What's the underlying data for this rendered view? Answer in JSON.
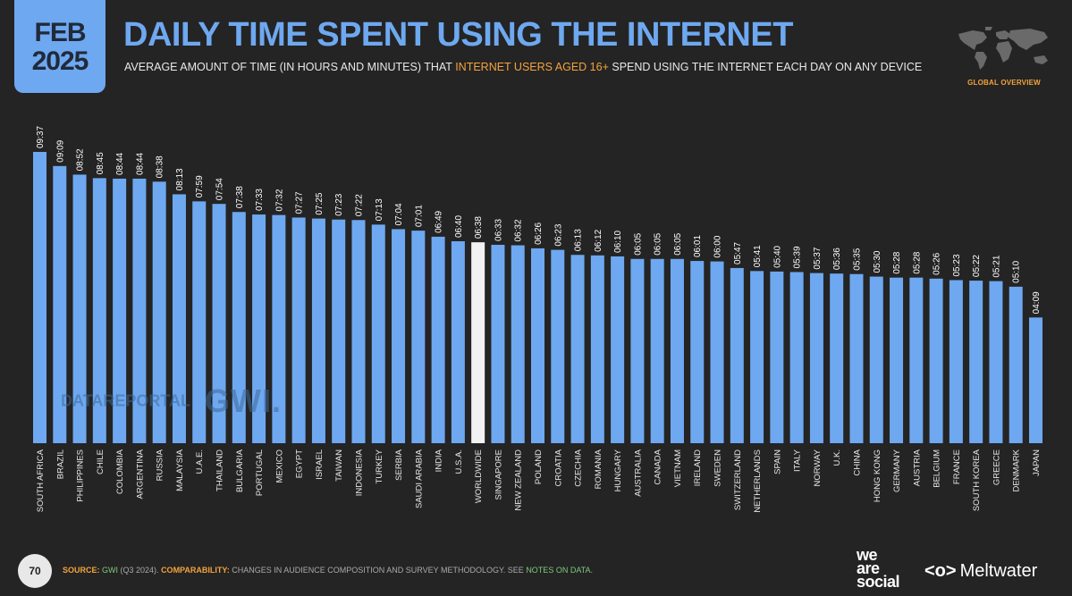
{
  "header": {
    "month": "FEB",
    "year": "2025",
    "title": "DAILY TIME SPENT USING THE INTERNET",
    "subtitle_pre": "AVERAGE AMOUNT OF TIME (IN HOURS AND MINUTES) THAT ",
    "subtitle_highlight": "INTERNET USERS AGED 16+",
    "subtitle_post": " SPEND USING THE INTERNET EACH DAY ON ANY DEVICE",
    "overview_label": "GLOBAL OVERVIEW"
  },
  "watermark": {
    "datareportal": "DATAREPORTAL",
    "gwi": "GWI."
  },
  "footer": {
    "page_number": "70",
    "source_label": "SOURCE:",
    "source_link": "GWI",
    "source_text": " (Q3 2024). ",
    "comparability_label": "COMPARABILITY:",
    "comparability_text": " CHANGES IN AUDIENCE COMPOSITION AND SURVEY METHODOLOGY. SEE ",
    "notes_link": "NOTES ON DATA",
    "notes_end": "."
  },
  "brand": {
    "we_are_social": [
      "we",
      "are",
      "social"
    ],
    "meltwater": "Meltwater"
  },
  "colors": {
    "bar": "#6ea8f0",
    "highlight_bar": "#f2f2f2",
    "accent": "#f3a33c",
    "background": "#242424"
  },
  "chart_data": {
    "type": "bar",
    "title": "DAILY TIME SPENT USING THE INTERNET",
    "highlight": "WORLDWIDE",
    "categories": [
      "SOUTH AFRICA",
      "BRAZIL",
      "PHILIPPINES",
      "CHILE",
      "COLOMBIA",
      "ARGENTINA",
      "RUSSIA",
      "MALAYSIA",
      "U.A.E.",
      "THAILAND",
      "BULGARIA",
      "PORTUGAL",
      "MEXICO",
      "EGYPT",
      "ISRAEL",
      "TAIWAN",
      "INDONESIA",
      "TURKEY",
      "SERBIA",
      "SAUDI ARABIA",
      "INDIA",
      "U.S.A.",
      "WORLDWIDE",
      "SINGAPORE",
      "NEW ZEALAND",
      "POLAND",
      "CROATIA",
      "CZECHIA",
      "ROMANIA",
      "HUNGARY",
      "AUSTRALIA",
      "CANADA",
      "VIETNAM",
      "IRELAND",
      "SWEDEN",
      "SWITZERLAND",
      "NETHERLANDS",
      "SPAIN",
      "ITALY",
      "NORWAY",
      "U.K.",
      "CHINA",
      "HONG KONG",
      "GERMANY",
      "AUSTRIA",
      "BELGIUM",
      "FRANCE",
      "SOUTH KOREA",
      "GREECE",
      "DENMARK",
      "JAPAN"
    ],
    "labels": [
      "09:37",
      "09:09",
      "08:52",
      "08:45",
      "08:44",
      "08:44",
      "08:38",
      "08:13",
      "07:59",
      "07:54",
      "07:38",
      "07:33",
      "07:32",
      "07:27",
      "07:25",
      "07:23",
      "07:22",
      "07:13",
      "07:04",
      "07:01",
      "06:49",
      "06:40",
      "06:38",
      "06:33",
      "06:32",
      "06:26",
      "06:23",
      "06:13",
      "06:12",
      "06:10",
      "06:05",
      "06:05",
      "06:05",
      "06:01",
      "06:00",
      "05:47",
      "05:41",
      "05:40",
      "05:39",
      "05:37",
      "05:36",
      "05:35",
      "05:30",
      "05:28",
      "05:28",
      "05:26",
      "05:23",
      "05:22",
      "05:21",
      "05:10",
      "04:09"
    ],
    "values_minutes": [
      577,
      549,
      532,
      525,
      524,
      524,
      518,
      493,
      479,
      474,
      458,
      453,
      452,
      447,
      445,
      443,
      442,
      433,
      424,
      421,
      409,
      400,
      398,
      393,
      392,
      386,
      383,
      373,
      372,
      370,
      365,
      365,
      365,
      361,
      360,
      347,
      341,
      340,
      339,
      337,
      336,
      335,
      330,
      328,
      328,
      326,
      323,
      322,
      321,
      310,
      249
    ],
    "ylim_minutes": [
      0,
      577
    ]
  }
}
